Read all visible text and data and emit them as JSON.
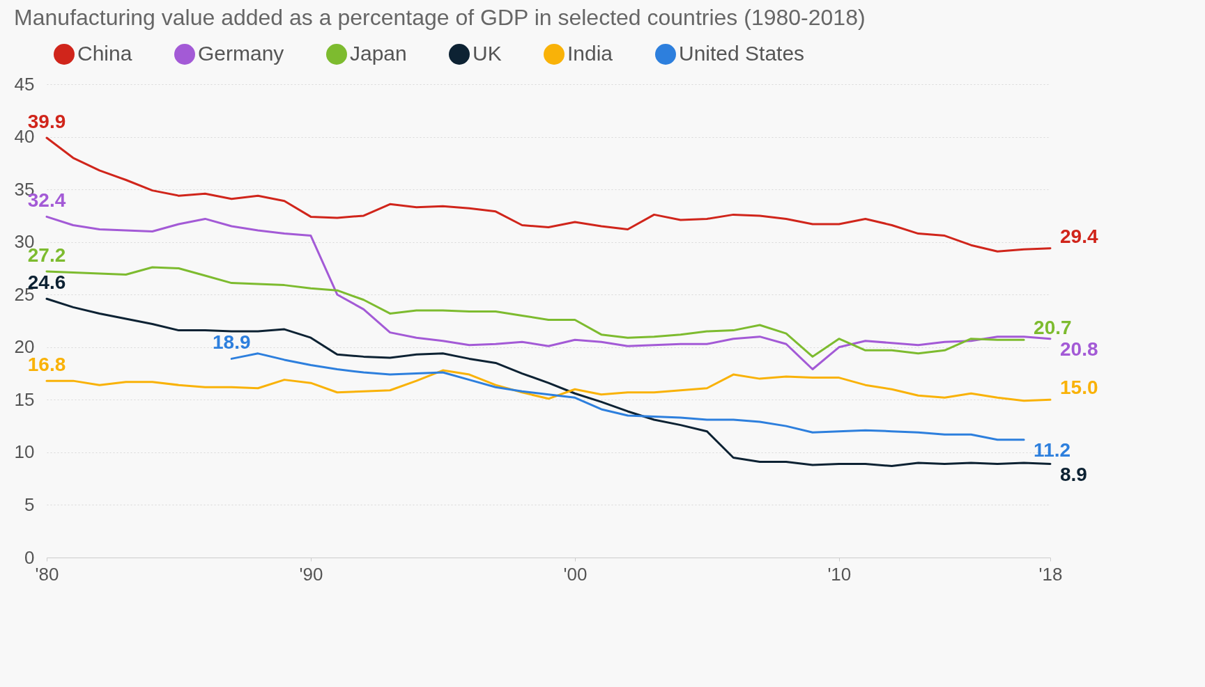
{
  "chart_data": {
    "type": "line",
    "title": "Manufacturing value added as a percentage of GDP in selected countries (1980-2018)",
    "x": [
      1980,
      1981,
      1982,
      1983,
      1984,
      1985,
      1986,
      1987,
      1988,
      1989,
      1990,
      1991,
      1992,
      1993,
      1994,
      1995,
      1996,
      1997,
      1998,
      1999,
      2000,
      2001,
      2002,
      2003,
      2004,
      2005,
      2006,
      2007,
      2008,
      2009,
      2010,
      2011,
      2012,
      2013,
      2014,
      2015,
      2016,
      2017,
      2018
    ],
    "series": [
      {
        "name": "China",
        "color": "#d0251b",
        "values": [
          39.9,
          38.0,
          36.8,
          35.9,
          34.9,
          34.4,
          34.6,
          34.1,
          34.4,
          33.9,
          32.4,
          32.3,
          32.5,
          33.6,
          33.3,
          33.4,
          33.2,
          32.9,
          31.6,
          31.4,
          31.9,
          31.5,
          31.2,
          32.6,
          32.1,
          32.2,
          32.6,
          32.5,
          32.2,
          31.7,
          31.7,
          32.2,
          31.6,
          30.8,
          30.6,
          29.7,
          29.1,
          29.3,
          29.4
        ],
        "value_labels": [
          "39.9",
          null,
          null,
          null,
          null,
          null,
          null,
          null,
          null,
          null,
          null,
          null,
          null,
          null,
          null,
          null,
          null,
          null,
          null,
          null,
          null,
          null,
          null,
          null,
          null,
          null,
          null,
          null,
          null,
          null,
          null,
          null,
          null,
          null,
          null,
          null,
          null,
          null,
          "29.4"
        ]
      },
      {
        "name": "Germany",
        "color": "#a35ad6",
        "values": [
          32.4,
          31.6,
          31.2,
          31.1,
          31.0,
          31.7,
          32.2,
          31.5,
          31.1,
          30.8,
          30.6,
          25.0,
          23.6,
          21.4,
          20.9,
          20.6,
          20.2,
          20.3,
          20.5,
          20.1,
          20.7,
          20.5,
          20.1,
          20.2,
          20.3,
          20.3,
          20.8,
          21.0,
          20.3,
          17.9,
          20.0,
          20.6,
          20.4,
          20.2,
          20.5,
          20.6,
          21.0,
          21.0,
          20.8
        ],
        "value_labels": [
          "32.4",
          null,
          null,
          null,
          null,
          null,
          null,
          null,
          null,
          null,
          null,
          null,
          null,
          null,
          null,
          null,
          null,
          null,
          null,
          null,
          null,
          null,
          null,
          null,
          null,
          null,
          null,
          null,
          null,
          null,
          null,
          null,
          null,
          null,
          null,
          null,
          null,
          null,
          "20.8"
        ]
      },
      {
        "name": "Japan",
        "color": "#7dbb2f",
        "values": [
          27.2,
          27.1,
          27.0,
          26.9,
          27.6,
          27.5,
          26.8,
          26.1,
          26.0,
          25.9,
          25.6,
          25.4,
          24.5,
          23.2,
          23.5,
          23.5,
          23.4,
          23.4,
          23.0,
          22.6,
          22.6,
          21.2,
          20.9,
          21.0,
          21.2,
          21.5,
          21.6,
          22.1,
          21.3,
          19.1,
          20.8,
          19.7,
          19.7,
          19.4,
          19.7,
          20.8,
          20.7,
          20.7,
          null
        ],
        "value_labels": [
          "27.2",
          null,
          null,
          null,
          null,
          null,
          null,
          null,
          null,
          null,
          null,
          null,
          null,
          null,
          null,
          null,
          null,
          null,
          null,
          null,
          null,
          null,
          null,
          null,
          null,
          null,
          null,
          null,
          null,
          null,
          null,
          null,
          null,
          null,
          null,
          null,
          null,
          "20.7",
          null
        ]
      },
      {
        "name": "UK",
        "color": "#0d2233",
        "values": [
          24.6,
          23.8,
          23.2,
          22.7,
          22.2,
          21.6,
          21.6,
          21.5,
          21.5,
          21.7,
          20.9,
          19.3,
          19.1,
          19.0,
          19.3,
          19.4,
          18.9,
          18.5,
          17.5,
          16.6,
          15.6,
          14.8,
          13.9,
          13.1,
          12.6,
          12.0,
          9.5,
          9.1,
          9.1,
          8.8,
          8.9,
          8.9,
          8.7,
          9.0,
          8.9,
          9.0,
          8.9,
          9.0,
          8.9
        ],
        "value_labels": [
          "24.6",
          null,
          null,
          null,
          null,
          null,
          null,
          null,
          null,
          null,
          null,
          null,
          null,
          null,
          null,
          null,
          null,
          null,
          null,
          null,
          null,
          null,
          null,
          null,
          null,
          null,
          null,
          null,
          null,
          null,
          null,
          null,
          null,
          null,
          null,
          null,
          null,
          null,
          "8.9"
        ]
      },
      {
        "name": "India",
        "color": "#f9b208",
        "values": [
          16.8,
          16.8,
          16.4,
          16.7,
          16.7,
          16.4,
          16.2,
          16.2,
          16.1,
          16.9,
          16.6,
          15.7,
          15.8,
          15.9,
          16.8,
          17.8,
          17.4,
          16.4,
          15.7,
          15.1,
          16.0,
          15.5,
          15.7,
          15.7,
          15.9,
          16.1,
          17.4,
          17.0,
          17.2,
          17.1,
          17.1,
          16.4,
          16.0,
          15.4,
          15.2,
          15.6,
          15.2,
          14.9,
          15.0
        ],
        "value_labels": [
          "16.8",
          null,
          null,
          null,
          null,
          null,
          null,
          null,
          null,
          null,
          null,
          null,
          null,
          null,
          null,
          null,
          null,
          null,
          null,
          null,
          null,
          null,
          null,
          null,
          null,
          null,
          null,
          null,
          null,
          null,
          null,
          null,
          null,
          null,
          null,
          null,
          null,
          null,
          "15.0"
        ]
      },
      {
        "name": "United States",
        "color": "#2d7fdd",
        "values": [
          null,
          null,
          null,
          null,
          null,
          null,
          null,
          18.9,
          19.4,
          18.8,
          18.3,
          17.9,
          17.6,
          17.4,
          17.5,
          17.6,
          16.9,
          16.2,
          15.8,
          15.5,
          15.2,
          14.1,
          13.5,
          13.4,
          13.3,
          13.1,
          13.1,
          12.9,
          12.5,
          11.9,
          12.0,
          12.1,
          12.0,
          11.9,
          11.7,
          11.7,
          11.2,
          11.2,
          null
        ],
        "value_labels": [
          null,
          null,
          null,
          null,
          null,
          null,
          null,
          "18.9",
          null,
          null,
          null,
          null,
          null,
          null,
          null,
          null,
          null,
          null,
          null,
          null,
          null,
          null,
          null,
          null,
          null,
          null,
          null,
          null,
          null,
          null,
          null,
          null,
          null,
          null,
          null,
          null,
          null,
          "11.2",
          null
        ]
      }
    ],
    "xlim": [
      1980,
      2018
    ],
    "xticks": [
      {
        "value": 1980,
        "label": "'80"
      },
      {
        "value": 1990,
        "label": "'90"
      },
      {
        "value": 2000,
        "label": "'00"
      },
      {
        "value": 2010,
        "label": "'10"
      },
      {
        "value": 2018,
        "label": "'18"
      }
    ],
    "ylim": [
      0,
      45
    ],
    "yticks": [
      0,
      5,
      10,
      15,
      20,
      25,
      30,
      35,
      40,
      45
    ],
    "grid": "y",
    "legend": "top",
    "marker": "none",
    "line_style": "solid"
  }
}
